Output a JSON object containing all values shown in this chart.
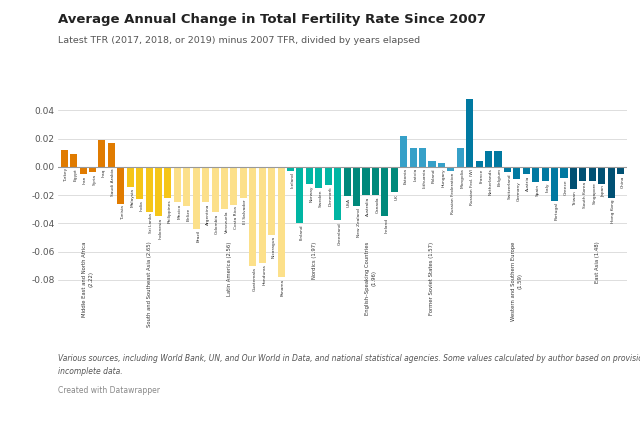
{
  "title": "Average Annual Change in Total Fertility Rate Since 2007",
  "subtitle": "Latest TFR (2017, 2018, or 2019) minus 2007 TFR, divided by years elapsed",
  "footnote": "Various sources, including World Bank, UN, and Our World in Data, and national statistical agencies. Some values calculated by author based on provisional or\nincomplete data.",
  "credit": "Created with Datawrapper",
  "ylim": [
    -0.098,
    0.058
  ],
  "yticks": [
    -0.08,
    -0.06,
    -0.04,
    -0.02,
    0,
    0.02,
    0.04
  ],
  "background_color": "#ffffff",
  "bar_data": [
    [
      "Turkey",
      0.012,
      "#e07b00"
    ],
    [
      "Egypt",
      0.009,
      "#e07b00"
    ],
    [
      "Iran",
      -0.005,
      "#e07b00"
    ],
    [
      "Syria",
      -0.004,
      "#e07b00"
    ],
    [
      "Iraq",
      0.019,
      "#e07b00"
    ],
    [
      "Saudi Arabia",
      0.017,
      "#e07b00"
    ],
    [
      "Tunisia",
      -0.026,
      "#e07b00"
    ],
    [
      "Malaysia",
      -0.014,
      "#f5c518"
    ],
    [
      "India",
      -0.023,
      "#f5c518"
    ],
    [
      "Sri Lanka",
      -0.032,
      "#f5c518"
    ],
    [
      "Indonesia",
      -0.035,
      "#f5c518"
    ],
    [
      "Philippines",
      -0.022,
      "#f5c518"
    ],
    [
      "Mexico",
      -0.025,
      "#fce08a"
    ],
    [
      "Belize",
      -0.028,
      "#fce08a"
    ],
    [
      "Brazil",
      -0.044,
      "#fce08a"
    ],
    [
      "Argentina",
      -0.025,
      "#fce08a"
    ],
    [
      "Colombia",
      -0.032,
      "#fce08a"
    ],
    [
      "Venezuela",
      -0.03,
      "#fce08a"
    ],
    [
      "Costa Rica",
      -0.027,
      "#fce08a"
    ],
    [
      "El Salvador",
      -0.022,
      "#fce08a"
    ],
    [
      "Guatemala",
      -0.07,
      "#fce08a"
    ],
    [
      "Honduras",
      -0.068,
      "#fce08a"
    ],
    [
      "Nicaragua",
      -0.048,
      "#fce08a"
    ],
    [
      "Panama",
      -0.078,
      "#fce08a"
    ],
    [
      "Iceland",
      -0.003,
      "#00b5a3"
    ],
    [
      "Finland",
      -0.04,
      "#00b5a3"
    ],
    [
      "Norway",
      -0.012,
      "#00b5a3"
    ],
    [
      "Sweden",
      -0.015,
      "#00b5a3"
    ],
    [
      "Denmark",
      -0.013,
      "#00b5a3"
    ],
    [
      "Greenland",
      -0.038,
      "#00b5a3"
    ],
    [
      "USA",
      -0.021,
      "#00897b"
    ],
    [
      "New Zealand",
      -0.028,
      "#00897b"
    ],
    [
      "Australia",
      -0.02,
      "#00897b"
    ],
    [
      "Canada",
      -0.02,
      "#00897b"
    ],
    [
      "Ireland",
      -0.035,
      "#00897b"
    ],
    [
      "UK",
      -0.018,
      "#00897b"
    ],
    [
      "Estonia",
      0.022,
      "#36a0c8"
    ],
    [
      "Latvia",
      0.013,
      "#36a0c8"
    ],
    [
      "Lithuania",
      0.013,
      "#36a0c8"
    ],
    [
      "Poland",
      0.004,
      "#36a0c8"
    ],
    [
      "Hungary",
      0.003,
      "#36a0c8"
    ],
    [
      "Russian Federation",
      -0.003,
      "#36a0c8"
    ],
    [
      "Mongolia",
      0.013,
      "#36a0c8"
    ],
    [
      "Russian Fed. (W)",
      0.048,
      "#0079a1"
    ],
    [
      "France",
      0.004,
      "#0079a1"
    ],
    [
      "Netherlands",
      0.011,
      "#0079a1"
    ],
    [
      "Belgium",
      0.011,
      "#0079a1"
    ],
    [
      "Switzerland",
      -0.004,
      "#0079a1"
    ],
    [
      "Germany",
      -0.009,
      "#0079a1"
    ],
    [
      "Austria",
      -0.005,
      "#0079a1"
    ],
    [
      "Spain",
      -0.011,
      "#0079a1"
    ],
    [
      "Italy",
      -0.01,
      "#0079a1"
    ],
    [
      "Portugal",
      -0.024,
      "#0079a1"
    ],
    [
      "Greece",
      -0.008,
      "#0079a1"
    ],
    [
      "Taiwan",
      -0.016,
      "#005073"
    ],
    [
      "South Korea",
      -0.01,
      "#005073"
    ],
    [
      "Singapore",
      -0.01,
      "#005073"
    ],
    [
      "Japan",
      -0.012,
      "#005073"
    ],
    [
      "Hong Kong",
      -0.022,
      "#005073"
    ],
    [
      "China",
      -0.005,
      "#005073"
    ]
  ],
  "group_labels": [
    {
      "start": 0,
      "end": 5,
      "label": "Middle East and North Africa\n(2.22)"
    },
    {
      "start": 6,
      "end": 6,
      "label": ""
    },
    {
      "start": 7,
      "end": 11,
      "label": "South and Southeast Asia (2.65)"
    },
    {
      "start": 12,
      "end": 23,
      "label": "Latin America (2.56)"
    },
    {
      "start": 24,
      "end": 29,
      "label": "Nordics (1.97)"
    },
    {
      "start": 30,
      "end": 35,
      "label": "English–Speaking Countries\n(1.96)"
    },
    {
      "start": 36,
      "end": 42,
      "label": "Former Soviet States (1.57)"
    },
    {
      "start": 43,
      "end": 53,
      "label": "Western and Southern Europe\n(1.59)"
    },
    {
      "start": 54,
      "end": 59,
      "label": "East Asia (1.48)"
    }
  ]
}
